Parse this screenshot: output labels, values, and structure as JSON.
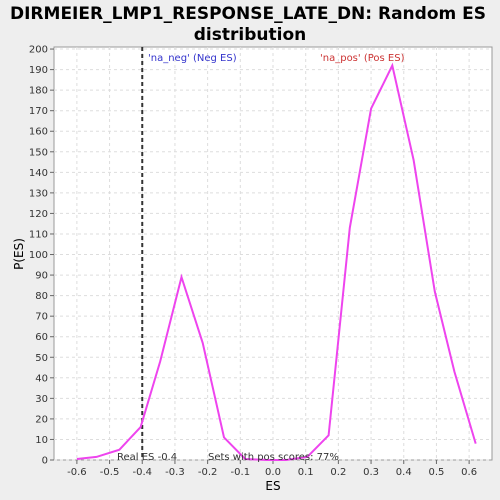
{
  "chart_data": {
    "type": "line",
    "title_line1": "DIRMEIER_LMP1_RESPONSE_LATE_DN: Random ES",
    "title_line2": "distribution",
    "xlabel": "ES",
    "ylabel": "P(ES)",
    "xlim": [
      -0.67,
      0.67
    ],
    "ylim": [
      0,
      201
    ],
    "x_ticks": [
      -0.6,
      -0.5,
      -0.4,
      -0.3,
      -0.2,
      -0.1,
      0.0,
      0.1,
      0.2,
      0.3,
      0.4,
      0.5,
      0.6
    ],
    "x_tick_labels": [
      "-0.6",
      "-0.5",
      "-0.4",
      "-0.3",
      "-0.2",
      "-0.1",
      "0.0",
      "0.1",
      "0.2",
      "0.3",
      "0.4",
      "0.5",
      "0.6"
    ],
    "y_ticks": [
      0,
      10,
      20,
      30,
      40,
      50,
      60,
      70,
      80,
      90,
      100,
      110,
      120,
      130,
      140,
      150,
      160,
      170,
      180,
      190,
      200
    ],
    "grid": true,
    "series": [
      {
        "color": "#ee44ee",
        "x": [
          -0.6,
          -0.54,
          -0.47,
          -0.405,
          -0.345,
          -0.28,
          -0.215,
          -0.15,
          -0.085,
          -0.02,
          0.04,
          0.105,
          0.17,
          0.235,
          0.3,
          0.365,
          0.43,
          0.495,
          0.555,
          0.62
        ],
        "y": [
          0.5,
          1.5,
          5,
          16,
          48,
          89,
          57,
          11,
          0.5,
          0,
          0,
          1.5,
          12,
          113,
          171,
          192,
          146,
          82,
          43,
          8
        ]
      }
    ],
    "real_es": {
      "x": -0.4,
      "label": "Real ES -0.4"
    },
    "annotations": {
      "neg_label": "'na_neg' (Neg ES)",
      "neg_color": "#3333cc",
      "pos_label": "'na_pos' (Pos ES)",
      "pos_color": "#cc3333",
      "pos_scores_label": "Sets with pos scores: 77%"
    }
  }
}
